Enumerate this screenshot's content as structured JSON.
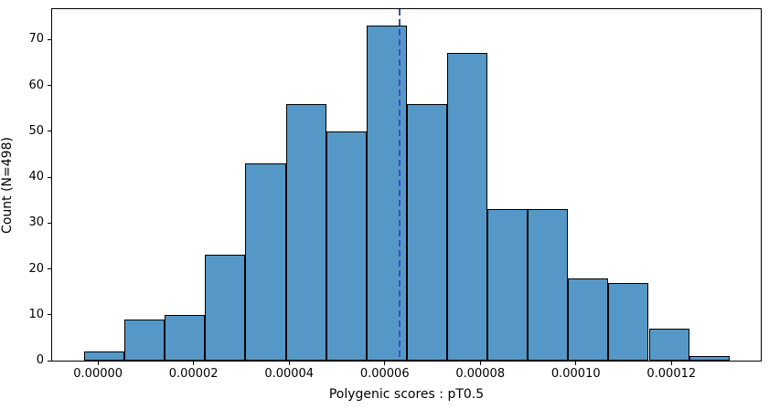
{
  "chart_data": {
    "type": "bar",
    "subtype": "histogram",
    "title": "",
    "xlabel": "Polygenic scores : pT0.5",
    "ylabel": "Count (N=498)",
    "n_total": 498,
    "bin_start": -2.9e-06,
    "bin_width": 8.44e-06,
    "counts": [
      2,
      9,
      10,
      23,
      43,
      56,
      50,
      73,
      56,
      67,
      33,
      33,
      18,
      17,
      7,
      1
    ],
    "xlim": [
      -9.6e-06,
      0.0001387
    ],
    "ylim": [
      0,
      76.65
    ],
    "x_ticks": [
      {
        "value": 0.0,
        "label": "0.00000"
      },
      {
        "value": 2e-05,
        "label": "0.00002"
      },
      {
        "value": 4e-05,
        "label": "0.00004"
      },
      {
        "value": 6e-05,
        "label": "0.00006"
      },
      {
        "value": 8e-05,
        "label": "0.00008"
      },
      {
        "value": 0.0001,
        "label": "0.00010"
      },
      {
        "value": 0.00012,
        "label": "0.00012"
      }
    ],
    "y_ticks": [
      {
        "value": 0,
        "label": "0"
      },
      {
        "value": 10,
        "label": "10"
      },
      {
        "value": 20,
        "label": "20"
      },
      {
        "value": 30,
        "label": "30"
      },
      {
        "value": 40,
        "label": "40"
      },
      {
        "value": 50,
        "label": "50"
      },
      {
        "value": 60,
        "label": "60"
      },
      {
        "value": 70,
        "label": "70"
      }
    ],
    "vline": {
      "x": 6.32e-05,
      "style": "dashed",
      "color": "#3A4CC9",
      "meaning": "mean marker"
    },
    "grid": false,
    "legend": null,
    "colors": {
      "bar_fill": "#5598C7",
      "bar_edge": "#000000",
      "axis": "#000000",
      "background": "#ffffff"
    }
  }
}
